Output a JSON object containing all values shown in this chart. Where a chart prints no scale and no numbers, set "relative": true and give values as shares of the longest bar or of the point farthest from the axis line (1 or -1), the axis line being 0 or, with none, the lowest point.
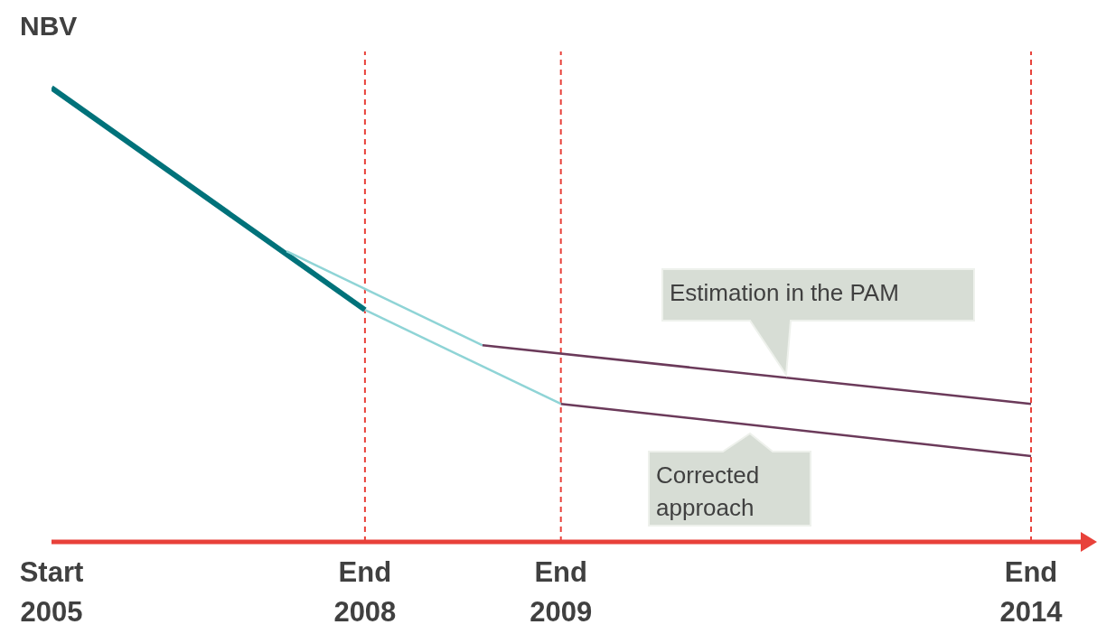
{
  "chart_data": {
    "type": "line",
    "relative": true,
    "ylabel": "NBV",
    "categories": [
      "Start\n2005",
      null,
      null,
      null,
      null,
      null,
      null,
      null,
      "End\n2008",
      null,
      null,
      null,
      null,
      "End\n2009",
      null,
      null,
      null,
      null,
      null,
      null,
      null,
      null,
      null,
      null,
      null,
      "End\n2014"
    ],
    "series": [
      {
        "color": "#00727a",
        "values": [
          1,
          null,
          null,
          null,
          null,
          null,
          null,
          null,
          0.511,
          null,
          null,
          null,
          null,
          null,
          null,
          null,
          null,
          null,
          null,
          null,
          null,
          null,
          null,
          null,
          null,
          null
        ]
      },
      {
        "color": "#8fd4d6",
        "values": [
          null,
          null,
          null,
          null,
          null,
          null,
          0.64,
          null,
          0.557,
          null,
          null,
          0.433,
          null,
          null,
          null,
          null,
          null,
          null,
          null,
          null,
          null,
          null,
          null,
          null,
          null,
          null
        ]
      },
      {
        "color": "#8fd4d6",
        "values": [
          null,
          null,
          null,
          null,
          null,
          null,
          null,
          null,
          0.511,
          null,
          null,
          null,
          null,
          0.304,
          null,
          null,
          null,
          null,
          null,
          null,
          null,
          null,
          null,
          null,
          null,
          null
        ]
      },
      {
        "color": "#6b3a5a",
        "values": [
          null,
          null,
          null,
          null,
          null,
          null,
          null,
          null,
          null,
          null,
          null,
          0.433,
          null,
          null,
          null,
          null,
          null,
          null,
          null,
          null,
          null,
          null,
          null,
          null,
          null,
          0.304
        ]
      },
      {
        "color": "#6b3a5a",
        "values": [
          null,
          null,
          null,
          null,
          null,
          null,
          null,
          null,
          null,
          null,
          null,
          null,
          null,
          0.304,
          null,
          null,
          null,
          null,
          null,
          null,
          null,
          null,
          null,
          null,
          null,
          0.189
        ]
      }
    ],
    "ref_lines": [
      {
        "axis": "x",
        "value": "End\n2008",
        "color": "#e8413a",
        "line_style": "dashed"
      },
      {
        "axis": "x",
        "value": "End\n2009",
        "color": "#e8413a",
        "line_style": "dashed"
      },
      {
        "axis": "x",
        "value": "End\n2014",
        "color": "#e8413a",
        "line_style": "dashed"
      }
    ],
    "annotations": [
      "Estimation in the PAM",
      "Corrected approach"
    ],
    "grid": false,
    "legend": false,
    "marker": "none",
    "line_style": "solid"
  }
}
